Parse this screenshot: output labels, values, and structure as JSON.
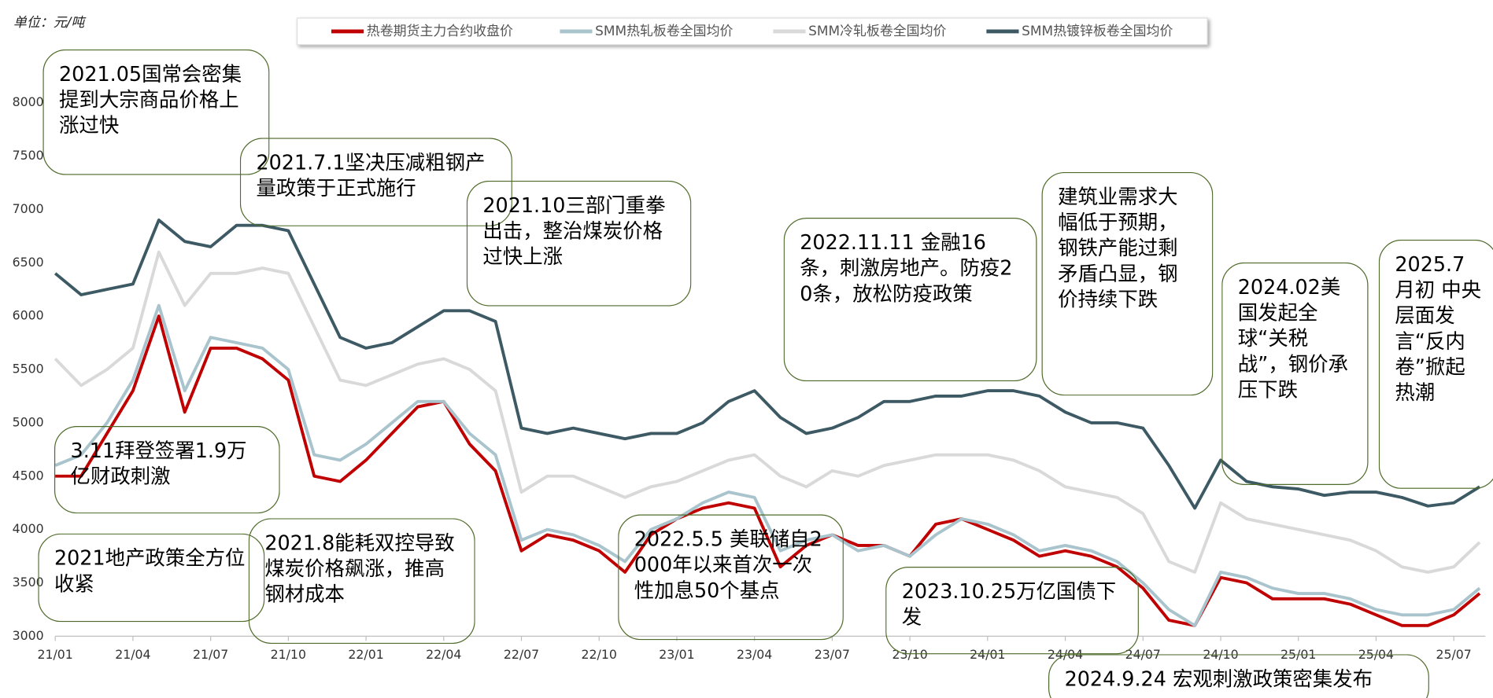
{
  "chart_data": {
    "type": "line",
    "unit_label": "单位：元/吨",
    "categories": [
      "21/01",
      null,
      null,
      "21/04",
      null,
      null,
      "21/07",
      null,
      null,
      "21/10",
      null,
      null,
      "22/01",
      null,
      null,
      "22/04",
      null,
      null,
      "22/07",
      null,
      null,
      "22/10",
      null,
      null,
      "23/01",
      null,
      null,
      "23/04",
      null,
      null,
      "23/07",
      null,
      null,
      "23/10",
      null,
      null,
      "24/01",
      null,
      null,
      "24/04",
      null,
      null,
      "24/07",
      null,
      null,
      "24/10",
      null,
      null,
      "25/01",
      null,
      null,
      "25/04",
      null,
      null,
      "25/07",
      null
    ],
    "series": [
      {
        "name": "热卷期货主力合约收盘价",
        "color": "#c00000",
        "values": [
          4500,
          4500,
          4900,
          5300,
          6000,
          5100,
          5700,
          5700,
          5600,
          5400,
          4500,
          4450,
          4650,
          4900,
          5150,
          5200,
          4800,
          4550,
          3800,
          3950,
          3900,
          3800,
          3600,
          3950,
          4100,
          4200,
          4250,
          4200,
          3650,
          3850,
          3950,
          3850,
          3850,
          3750,
          4050,
          4100,
          4000,
          3900,
          3750,
          3800,
          3750,
          3650,
          3450,
          3150,
          3100,
          3550,
          3500,
          3350,
          3350,
          3350,
          3300,
          3200,
          3100,
          3100,
          3200,
          3400
        ]
      },
      {
        "name": "SMM热轧板卷全国均价",
        "color": "#a9c4cc",
        "values": [
          4600,
          4700,
          5000,
          5400,
          6100,
          5300,
          5800,
          5750,
          5700,
          5500,
          4700,
          4650,
          4800,
          5000,
          5200,
          5200,
          4900,
          4700,
          3900,
          4000,
          3950,
          3850,
          3700,
          4000,
          4100,
          4250,
          4350,
          4300,
          3800,
          3900,
          3950,
          3800,
          3850,
          3750,
          3950,
          4100,
          4050,
          3950,
          3800,
          3850,
          3800,
          3700,
          3500,
          3250,
          3100,
          3600,
          3550,
          3450,
          3400,
          3400,
          3350,
          3250,
          3200,
          3200,
          3250,
          3450
        ]
      },
      {
        "name": "SMM冷轧板卷全国均价",
        "color": "#d9d9d9",
        "values": [
          5600,
          5350,
          5500,
          5700,
          6600,
          6100,
          6400,
          6400,
          6450,
          6400,
          5900,
          5400,
          5350,
          5450,
          5550,
          5600,
          5500,
          5300,
          4350,
          4500,
          4500,
          4400,
          4300,
          4400,
          4450,
          4550,
          4650,
          4700,
          4500,
          4400,
          4550,
          4500,
          4600,
          4650,
          4700,
          4700,
          4700,
          4650,
          4550,
          4400,
          4350,
          4300,
          4150,
          3700,
          3600,
          4250,
          4100,
          4050,
          4000,
          3950,
          3900,
          3800,
          3650,
          3600,
          3650,
          3880
        ]
      },
      {
        "name": "SMM热镀锌板卷全国均价",
        "color": "#3d5a64",
        "values": [
          6400,
          6200,
          6250,
          6300,
          6900,
          6700,
          6650,
          6850,
          6850,
          6800,
          6300,
          5800,
          5700,
          5750,
          5900,
          6050,
          6050,
          5950,
          4950,
          4900,
          4950,
          4900,
          4850,
          4900,
          4900,
          5000,
          5200,
          5300,
          5050,
          4900,
          4950,
          5050,
          5200,
          5200,
          5250,
          5250,
          5300,
          5300,
          5250,
          5100,
          5000,
          5000,
          4950,
          4600,
          4200,
          4650,
          4450,
          4400,
          4380,
          4320,
          4350,
          4350,
          4300,
          4220,
          4250,
          4400
        ]
      }
    ],
    "ylim": [
      3000,
      8000
    ],
    "yticks": [
      3000,
      3500,
      4000,
      4500,
      5000,
      5500,
      6000,
      6500,
      7000,
      7500,
      8000
    ],
    "legend": "top",
    "annotations": [
      "2021.05国常会密集提到大宗商品价格上涨过快",
      "2021.7.1坚决压减粗钢产量政策于正式施行",
      "2021.10三部门重拳出击，整治煤炭价格过快上涨",
      "2022.11.11 金融16条，刺激房地产。防疫20条，放松防疫政策",
      "建筑业需求大幅低于预期，钢铁产能过剩矛盾凸显，钢价持续下跌",
      "2024.02美国发起全球“关税战”，钢价承压下跌",
      "2025.7月初 中央层面发言“反内卷”掀起热潮",
      "3.11拜登签署1.9万亿财政刺激",
      "2021地产政策全方位收紧",
      "2021.8能耗双控导致煤炭价格飙涨，推高钢材成本",
      "2022.5.5 美联储自2000年以来首次一次性加息50个基点",
      "2023.10.25万亿国债下发",
      "2024.9.24 宏观刺激政策密集发布"
    ]
  }
}
